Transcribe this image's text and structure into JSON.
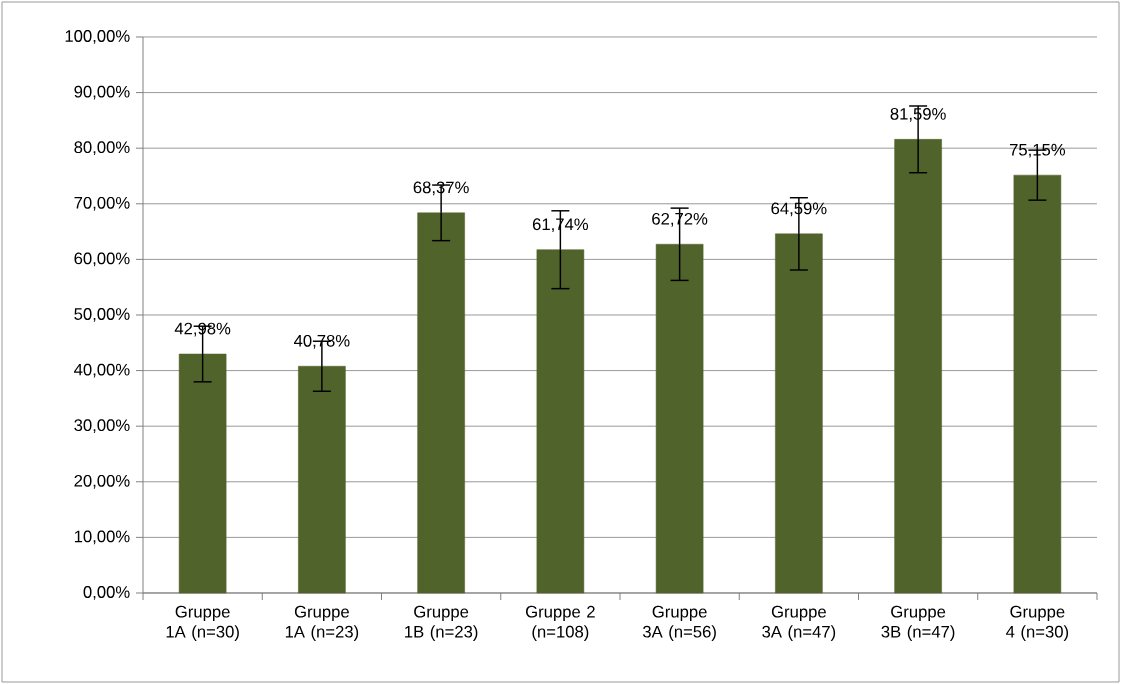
{
  "chart_data": {
    "type": "bar",
    "categories": [
      "Gruppe 1A (n=30)",
      "Gruppe 1A (n=23)",
      "Gruppe 1B (n=23)",
      "Gruppe 2 (n=108)",
      "Gruppe 3A (n=56)",
      "Gruppe 3A (n=47)",
      "Gruppe 3B (n=47)",
      "Gruppe 4 (n=30)"
    ],
    "values": [
      42.98,
      40.78,
      68.37,
      61.74,
      62.72,
      64.59,
      81.59,
      75.15
    ],
    "errors": [
      5,
      4.5,
      5,
      7,
      6.5,
      6.5,
      6,
      4.5
    ],
    "value_labels": [
      "42,98%",
      "40,78%",
      "68,37%",
      "61,74%",
      "62,72%",
      "64,59%",
      "81,59%",
      "75,15%"
    ],
    "color": "#50632b",
    "ylim": [
      0,
      100
    ],
    "yticks": [
      {
        "value": 0,
        "label": "0,00%"
      },
      {
        "value": 10,
        "label": "10,00%"
      },
      {
        "value": 20,
        "label": "20,00%"
      },
      {
        "value": 30,
        "label": "30,00%"
      },
      {
        "value": 40,
        "label": "40,00%"
      },
      {
        "value": 50,
        "label": "50,00%"
      },
      {
        "value": 60,
        "label": "60,00%"
      },
      {
        "value": 70,
        "label": "70,00%"
      },
      {
        "value": 80,
        "label": "80,00%"
      },
      {
        "value": 90,
        "label": "90,00%"
      },
      {
        "value": 100,
        "label": "100,00%"
      }
    ],
    "grid": "y"
  }
}
